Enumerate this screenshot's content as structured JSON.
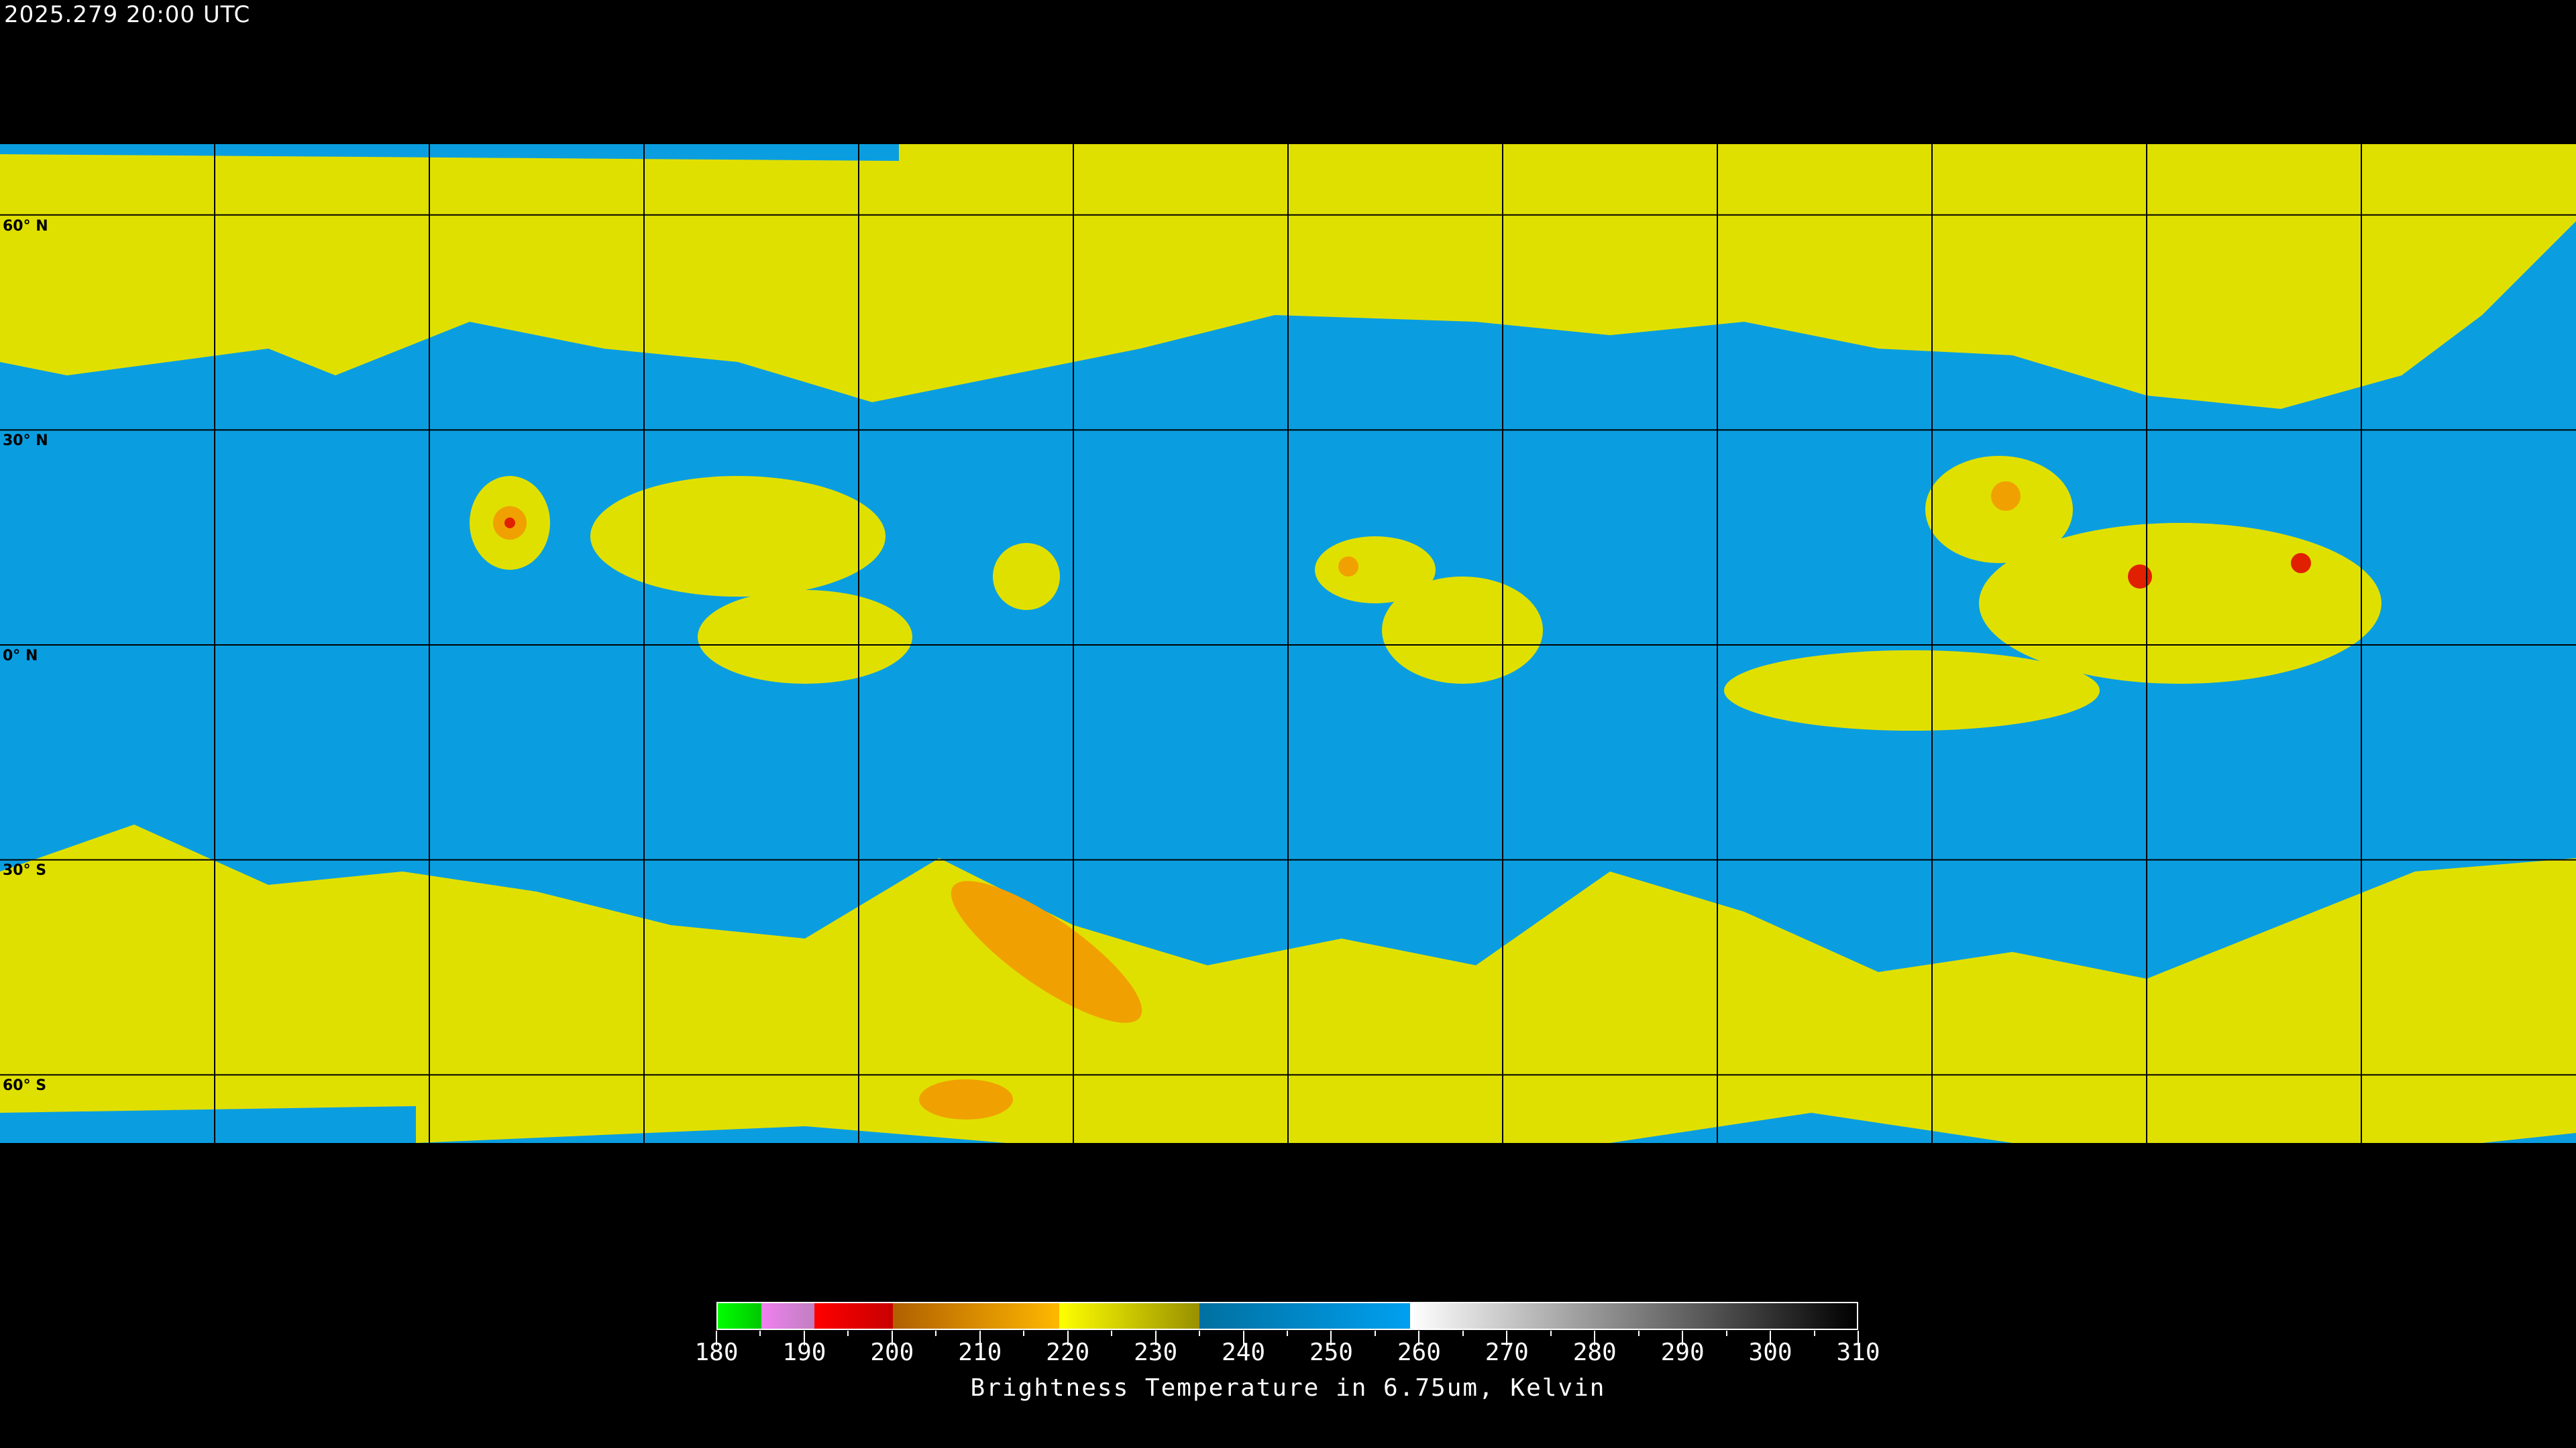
{
  "header": {
    "timestamp": "2025.279 20:00 UTC"
  },
  "map": {
    "projection": "equirectangular",
    "grid_spacing_deg": 30,
    "lat_labels": [
      "60° N",
      "30° N",
      "0° N",
      "30° S",
      "60° S"
    ],
    "lat_values": [
      60,
      30,
      0,
      -30,
      -60
    ],
    "colors": {
      "background": "#000000",
      "moist": "#0a9ee0",
      "dry_upper": "#e6e600",
      "cold_tops": "#f0a000",
      "very_cold": "#e02000",
      "coastline": "#000000",
      "polar_coastline": "#ffffff",
      "grid": "#000000"
    }
  },
  "colorbar": {
    "min": 180,
    "max": 310,
    "tick_labels": [
      "180",
      "190",
      "200",
      "210",
      "220",
      "230",
      "240",
      "250",
      "260",
      "270",
      "280",
      "290",
      "300",
      "310"
    ],
    "tick_values": [
      180,
      190,
      200,
      210,
      220,
      230,
      240,
      250,
      260,
      270,
      280,
      290,
      300,
      310
    ],
    "segments": [
      {
        "from": 180,
        "to": 185,
        "colors": [
          "#00ff00",
          "#00c800"
        ]
      },
      {
        "from": 185,
        "to": 191,
        "colors": [
          "#f080f0",
          "#c080c0"
        ]
      },
      {
        "from": 191,
        "to": 200,
        "colors": [
          "#ff0000",
          "#c80000"
        ]
      },
      {
        "from": 200,
        "to": 219,
        "colors": [
          "#b06000",
          "#ffb800"
        ]
      },
      {
        "from": 219,
        "to": 235,
        "colors": [
          "#ffff00",
          "#989000"
        ]
      },
      {
        "from": 235,
        "to": 259,
        "colors": [
          "#0070a0",
          "#00a0f0"
        ]
      },
      {
        "from": 259,
        "to": 310,
        "colors": [
          "#ffffff",
          "#000000"
        ]
      }
    ],
    "title": "Brightness Temperature in 6.75um, Kelvin"
  }
}
